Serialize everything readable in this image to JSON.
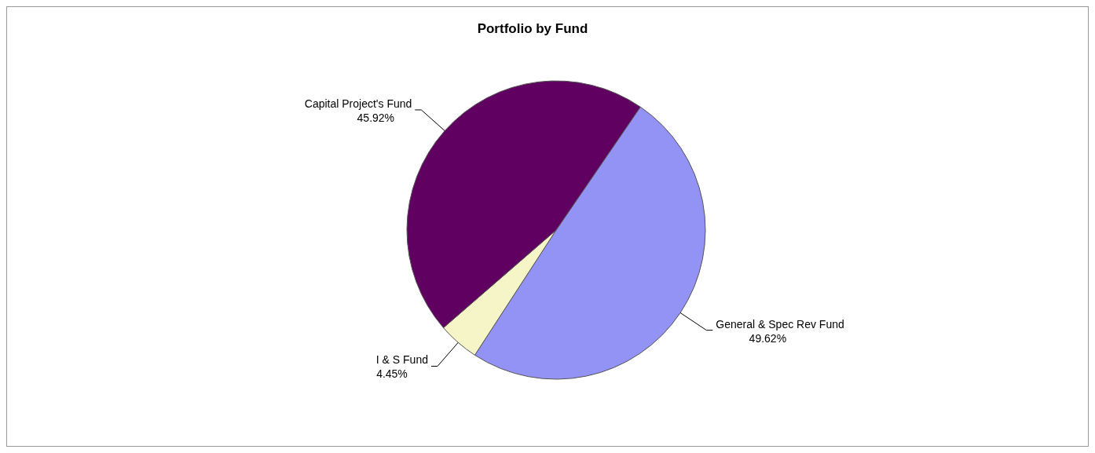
{
  "chart_data": {
    "type": "pie",
    "title": "Portfolio by Fund",
    "categories": [
      "General & Spec Rev Fund",
      "I & S Fund",
      "Capital Project's Fund"
    ],
    "values": [
      49.62,
      4.45,
      45.92
    ],
    "value_labels": [
      "49.62%",
      "4.45%",
      "45.92%"
    ],
    "colors": [
      "#9393f5",
      "#f5f5c8",
      "#600060"
    ],
    "legend": false
  }
}
